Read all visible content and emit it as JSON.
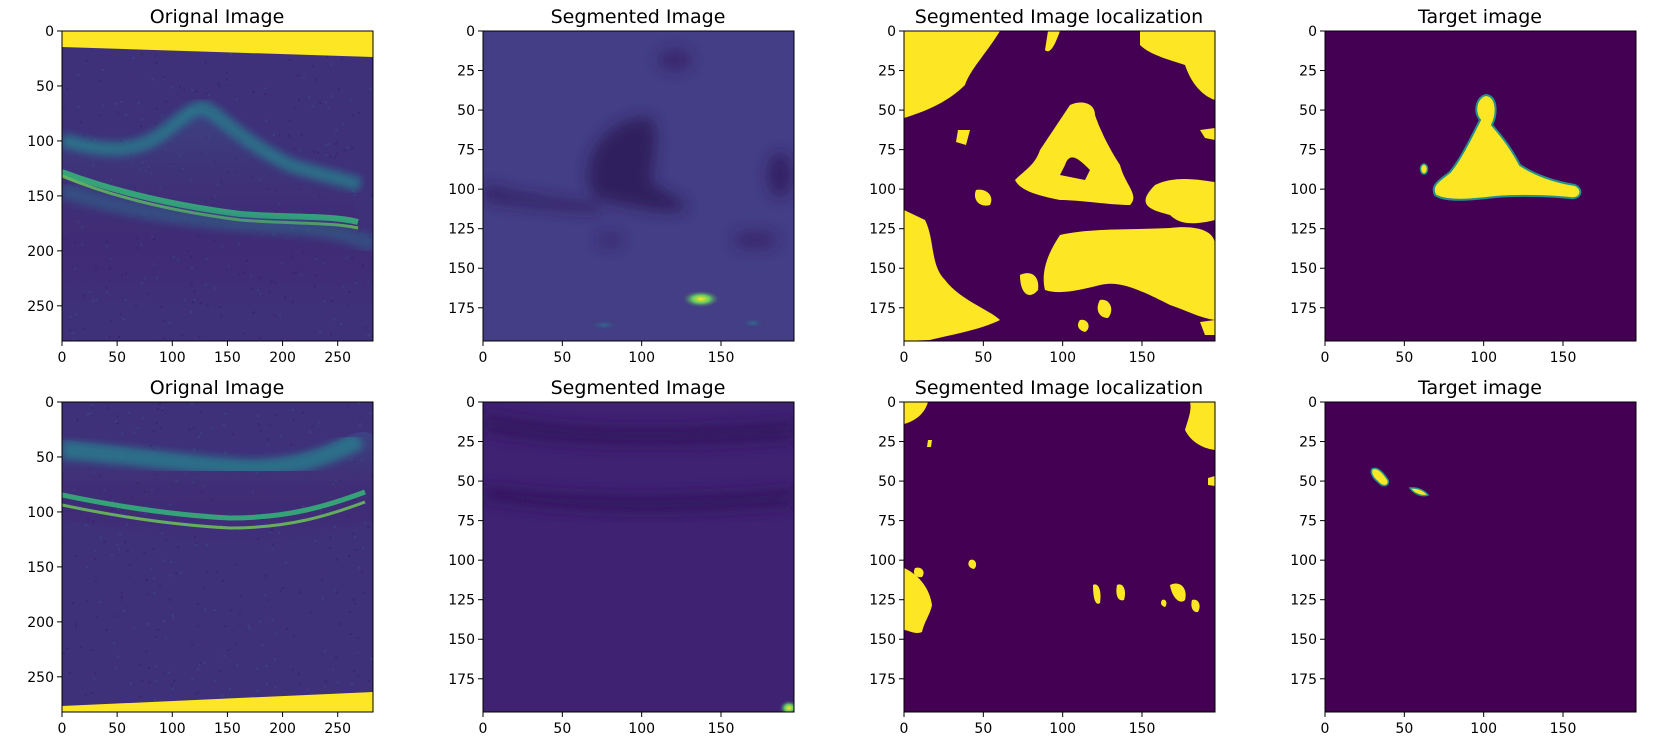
{
  "figure": {
    "colormap": "viridis",
    "colors": {
      "viridis_dark": "#440154",
      "viridis_mid": "#21918c",
      "viridis_light": "#fde725",
      "axis": "#000000",
      "background": "#ffffff"
    },
    "rows": [
      {
        "panels": [
          {
            "title": "Orignal Image",
            "kind": "oct-scan",
            "xticks": [
              "0",
              "50",
              "100",
              "150",
              "200",
              "250"
            ],
            "yticks": [
              "0",
              "50",
              "100",
              "150",
              "200",
              "250"
            ],
            "xrange": [
              0,
              282
            ],
            "yrange": [
              0,
              282
            ]
          },
          {
            "title": "Segmented Image",
            "kind": "heatmap",
            "xticks": [
              "0",
              "50",
              "100",
              "150"
            ],
            "yticks": [
              "0",
              "25",
              "50",
              "75",
              "100",
              "125",
              "150",
              "175"
            ],
            "xrange": [
              0,
              196
            ],
            "yrange": [
              0,
              196
            ]
          },
          {
            "title": "Segmented Image localization",
            "kind": "binary-mask",
            "xticks": [
              "0",
              "50",
              "100",
              "150"
            ],
            "yticks": [
              "0",
              "25",
              "50",
              "75",
              "100",
              "125",
              "150",
              "175"
            ],
            "xrange": [
              0,
              196
            ],
            "yrange": [
              0,
              196
            ]
          },
          {
            "title": "Target image",
            "kind": "binary-mask",
            "xticks": [
              "0",
              "50",
              "100",
              "150"
            ],
            "yticks": [
              "0",
              "25",
              "50",
              "75",
              "100",
              "125",
              "150",
              "175"
            ],
            "xrange": [
              0,
              196
            ],
            "yrange": [
              0,
              196
            ]
          }
        ]
      },
      {
        "panels": [
          {
            "title": "Orignal Image",
            "kind": "oct-scan",
            "xticks": [
              "0",
              "50",
              "100",
              "150",
              "200",
              "250"
            ],
            "yticks": [
              "0",
              "50",
              "100",
              "150",
              "200",
              "250"
            ],
            "xrange": [
              0,
              282
            ],
            "yrange": [
              0,
              282
            ]
          },
          {
            "title": "Segmented Image",
            "kind": "heatmap",
            "xticks": [
              "0",
              "50",
              "100",
              "150"
            ],
            "yticks": [
              "0",
              "25",
              "50",
              "75",
              "100",
              "125",
              "150",
              "175"
            ],
            "xrange": [
              0,
              196
            ],
            "yrange": [
              0,
              196
            ]
          },
          {
            "title": "Segmented Image localization",
            "kind": "binary-mask",
            "xticks": [
              "0",
              "50",
              "100",
              "150"
            ],
            "yticks": [
              "0",
              "25",
              "50",
              "75",
              "100",
              "125",
              "150",
              "175"
            ],
            "xrange": [
              0,
              196
            ],
            "yrange": [
              0,
              196
            ]
          },
          {
            "title": "Target image",
            "kind": "binary-mask",
            "xticks": [
              "0",
              "50",
              "100",
              "150"
            ],
            "yticks": [
              "0",
              "25",
              "50",
              "75",
              "100",
              "125",
              "150",
              "175"
            ],
            "xrange": [
              0,
              196
            ],
            "yrange": [
              0,
              196
            ]
          }
        ]
      }
    ]
  }
}
